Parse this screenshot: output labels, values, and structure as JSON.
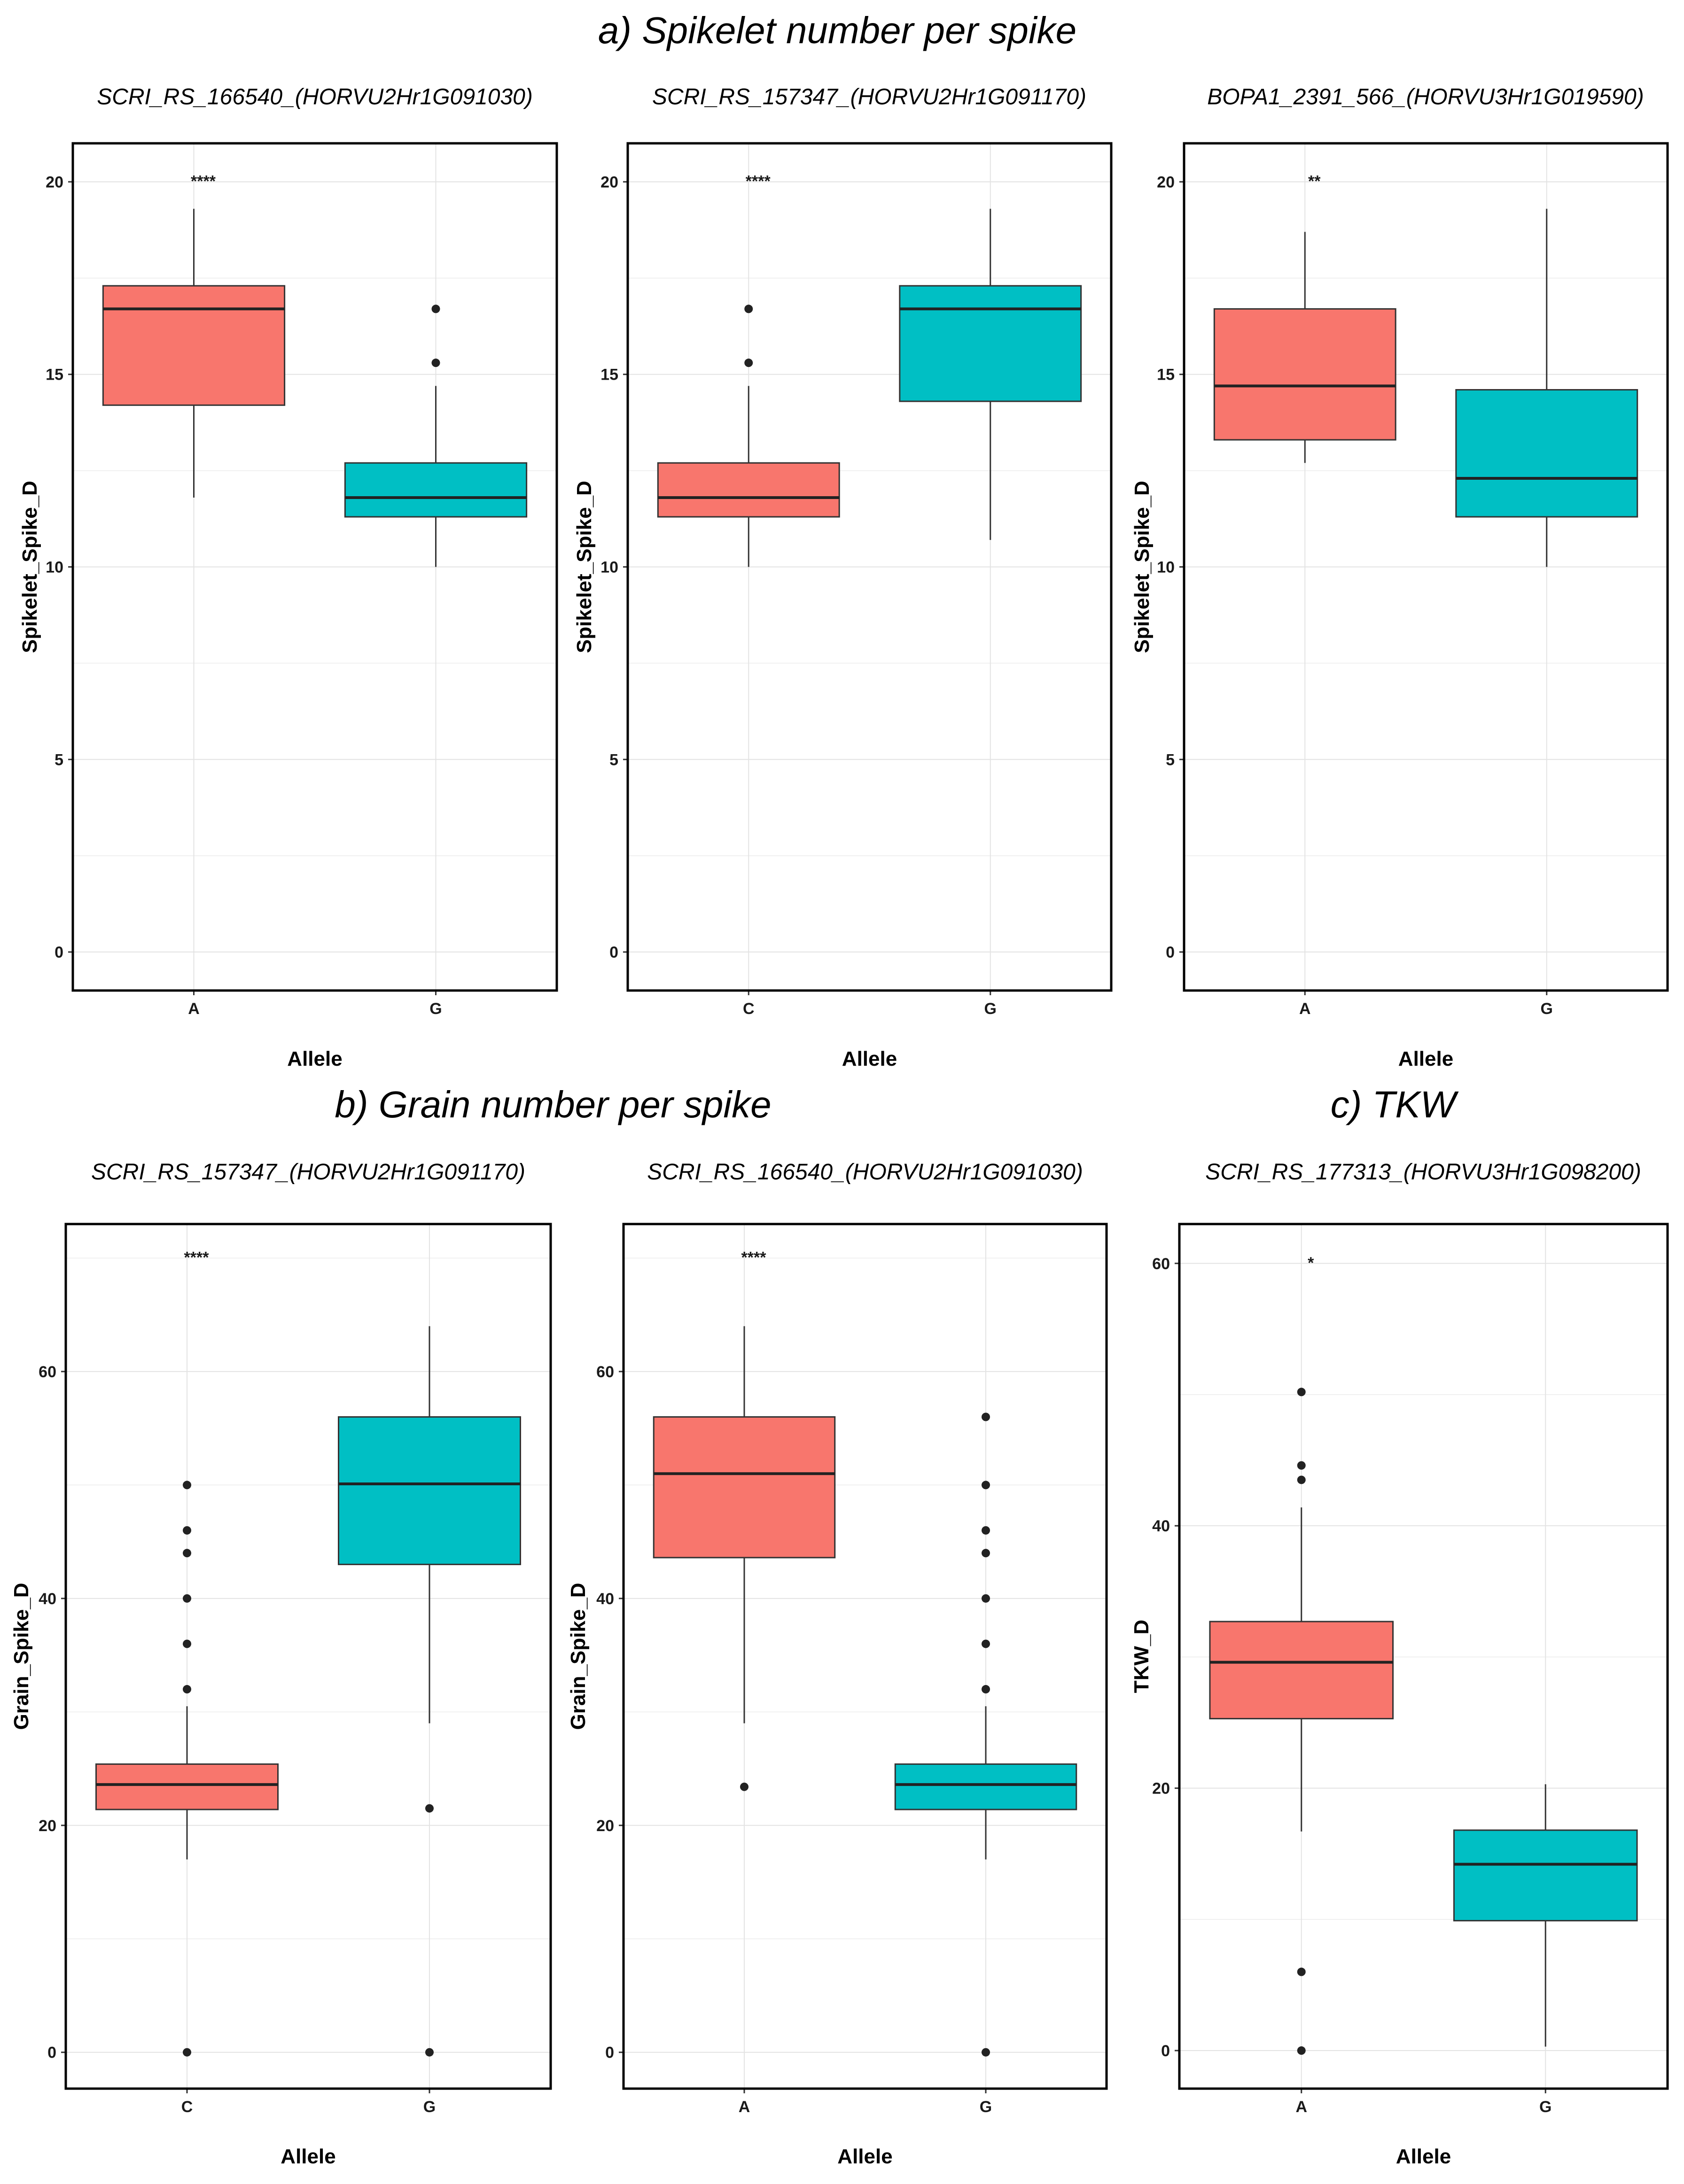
{
  "colors": {
    "first_allele": "#F8766D",
    "second_allele": "#00BFC4"
  },
  "sections": [
    {
      "id": "a",
      "title": "a) Spikelet number per spike"
    },
    {
      "id": "b",
      "title": "b) Grain number per spike"
    },
    {
      "id": "c",
      "title": "c) TKW"
    }
  ],
  "chart_data": [
    {
      "type": "boxplot",
      "section": "a",
      "title": "SCRI_RS_166540_(HORVU2Hr1G091030)",
      "xlabel": "Allele",
      "ylabel": "Spikelet_Spike_D",
      "ylim": [
        -1,
        21
      ],
      "yticks": [
        0,
        5,
        10,
        15,
        20
      ],
      "ytick_labels": [
        "0",
        "5",
        "10",
        "15",
        "20"
      ],
      "significance": "****",
      "significance_y": 20,
      "groups": [
        {
          "allele": "A",
          "min": 11.8,
          "q1": 14.2,
          "median": 16.7,
          "q3": 17.3,
          "max": 19.3,
          "outliers": []
        },
        {
          "allele": "G",
          "min": 10.0,
          "q1": 11.3,
          "median": 11.8,
          "q3": 12.7,
          "max": 14.7,
          "outliers": [
            15.3,
            16.7
          ]
        }
      ]
    },
    {
      "type": "boxplot",
      "section": "a",
      "title": "SCRI_RS_157347_(HORVU2Hr1G091170)",
      "xlabel": "Allele",
      "ylabel": "Spikelet_Spike_D",
      "ylim": [
        -1,
        21
      ],
      "yticks": [
        0,
        5,
        10,
        15,
        20
      ],
      "ytick_labels": [
        "0",
        "5",
        "10",
        "15",
        "20"
      ],
      "significance": "****",
      "significance_y": 20,
      "groups": [
        {
          "allele": "C",
          "min": 10.0,
          "q1": 11.3,
          "median": 11.8,
          "q3": 12.7,
          "max": 14.7,
          "outliers": [
            15.3,
            16.7
          ]
        },
        {
          "allele": "G",
          "min": 10.7,
          "q1": 14.3,
          "median": 16.7,
          "q3": 17.3,
          "max": 19.3,
          "outliers": []
        }
      ]
    },
    {
      "type": "boxplot",
      "section": "a",
      "title": "BOPA1_2391_566_(HORVU3Hr1G019590)",
      "xlabel": "Allele",
      "ylabel": "Spikelet_Spike_D",
      "ylim": [
        -1,
        21
      ],
      "yticks": [
        0,
        5,
        10,
        15,
        20
      ],
      "ytick_labels": [
        "0",
        "5",
        "10",
        "15",
        "20"
      ],
      "significance": "**",
      "significance_y": 20,
      "groups": [
        {
          "allele": "A",
          "min": 12.7,
          "q1": 13.3,
          "median": 14.7,
          "q3": 16.7,
          "max": 18.7,
          "outliers": []
        },
        {
          "allele": "G",
          "min": 10.0,
          "q1": 11.3,
          "median": 12.3,
          "q3": 14.6,
          "max": 19.3,
          "outliers": []
        }
      ]
    },
    {
      "type": "boxplot",
      "section": "b",
      "title": "SCRI_RS_157347_(HORVU2Hr1G091170)",
      "xlabel": "Allele",
      "ylabel": "Grain_Spike_D",
      "ylim": [
        -3.2,
        73
      ],
      "yticks": [
        0,
        20,
        40,
        60
      ],
      "ytick_labels": [
        "0",
        "20",
        "40",
        "60"
      ],
      "significance": "****",
      "significance_y": 70,
      "groups": [
        {
          "allele": "C",
          "min": 17.0,
          "q1": 21.4,
          "median": 23.6,
          "q3": 25.4,
          "max": 30.5,
          "outliers": [
            0,
            32,
            36,
            40,
            44,
            46,
            50
          ]
        },
        {
          "allele": "G",
          "min": 29.0,
          "q1": 43.0,
          "median": 50.1,
          "q3": 56.0,
          "max": 64.0,
          "outliers": [
            0,
            21.5
          ]
        }
      ]
    },
    {
      "type": "boxplot",
      "section": "b",
      "title": "SCRI_RS_166540_(HORVU2Hr1G091030)",
      "xlabel": "Allele",
      "ylabel": "Grain_Spike_D",
      "ylim": [
        -3.2,
        73
      ],
      "yticks": [
        0,
        20,
        40,
        60
      ],
      "ytick_labels": [
        "0",
        "20",
        "40",
        "60"
      ],
      "significance": "****",
      "significance_y": 70,
      "groups": [
        {
          "allele": "A",
          "min": 29.0,
          "q1": 43.6,
          "median": 51.0,
          "q3": 56.0,
          "max": 64.0,
          "outliers": [
            23.4
          ]
        },
        {
          "allele": "G",
          "min": 17.0,
          "q1": 21.4,
          "median": 23.6,
          "q3": 25.4,
          "max": 30.5,
          "outliers": [
            0,
            32,
            36,
            40,
            44,
            46,
            50,
            56
          ]
        }
      ]
    },
    {
      "type": "boxplot",
      "section": "c",
      "title": "SCRI_RS_177313_(HORVU3Hr1G098200)",
      "xlabel": "Allele",
      "ylabel": "TKW_D",
      "ylim": [
        -2.9,
        63
      ],
      "yticks": [
        0,
        20,
        40,
        60
      ],
      "ytick_labels": [
        "0",
        "20",
        "40",
        "60"
      ],
      "significance": "*",
      "significance_y": 60,
      "groups": [
        {
          "allele": "A",
          "min": 16.7,
          "q1": 25.3,
          "median": 29.6,
          "q3": 32.7,
          "max": 41.4,
          "outliers": [
            0,
            6,
            43.5,
            44.6,
            50.2
          ]
        },
        {
          "allele": "G",
          "min": 0.3,
          "q1": 9.9,
          "median": 14.2,
          "q3": 16.8,
          "max": 20.3,
          "outliers": []
        }
      ]
    }
  ]
}
